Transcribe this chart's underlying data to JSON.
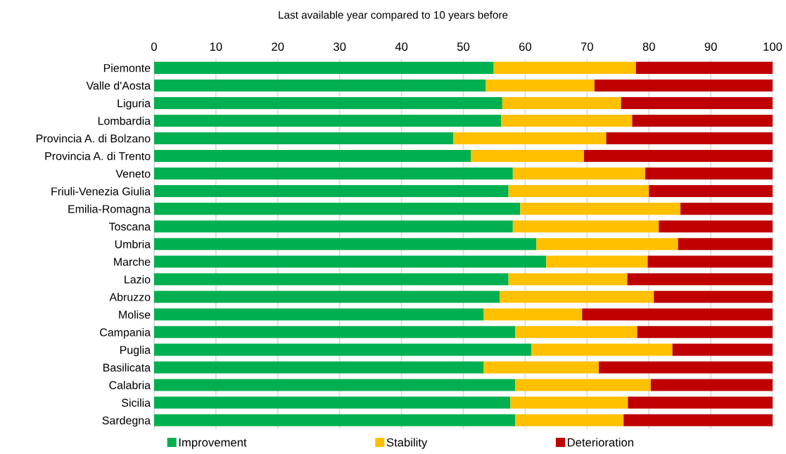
{
  "chart_data": {
    "type": "bar",
    "orientation": "horizontal",
    "stacked": true,
    "title": "Last available year compared to 10 years before",
    "categories": [
      "Piemonte",
      "Valle d'Aosta",
      "Liguria",
      "Lombardia",
      "Provincia A. di Bolzano",
      "Provincia A. di Trento",
      "Veneto",
      "Friuli-Venezia Giulia",
      "Emilia-Romagna",
      "Toscana",
      "Umbria",
      "Marche",
      "Lazio",
      "Abruzzo",
      "Molise",
      "Campania",
      "Puglia",
      "Basilicata",
      "Calabria",
      "Sicilia",
      "Sardegna"
    ],
    "series": [
      {
        "name": "Improvement",
        "color": "#00b050",
        "values": [
          54.9,
          53.6,
          56.3,
          56.1,
          48.4,
          51.2,
          58.0,
          57.3,
          59.2,
          58.0,
          61.8,
          63.4,
          57.3,
          55.9,
          53.3,
          58.4,
          61.0,
          53.3,
          58.4,
          57.6,
          58.4
        ]
      },
      {
        "name": "Stability",
        "color": "#ffc000",
        "values": [
          23.0,
          17.6,
          19.2,
          21.2,
          24.7,
          18.3,
          21.4,
          22.7,
          25.9,
          23.6,
          22.9,
          16.4,
          19.2,
          24.9,
          15.9,
          19.7,
          22.8,
          18.6,
          21.9,
          19.0,
          17.5
        ]
      },
      {
        "name": "Deterioration",
        "color": "#c00000",
        "values": [
          22.1,
          28.8,
          24.5,
          22.7,
          26.9,
          30.5,
          20.6,
          20.0,
          14.9,
          18.4,
          15.3,
          20.2,
          23.5,
          19.2,
          30.8,
          21.9,
          16.2,
          28.1,
          19.7,
          23.4,
          24.1
        ]
      }
    ],
    "xlim": [
      0,
      100
    ],
    "xticks": [
      0,
      10,
      20,
      30,
      40,
      50,
      60,
      70,
      80,
      90,
      100
    ],
    "grid": "x",
    "legend": "bottom"
  }
}
